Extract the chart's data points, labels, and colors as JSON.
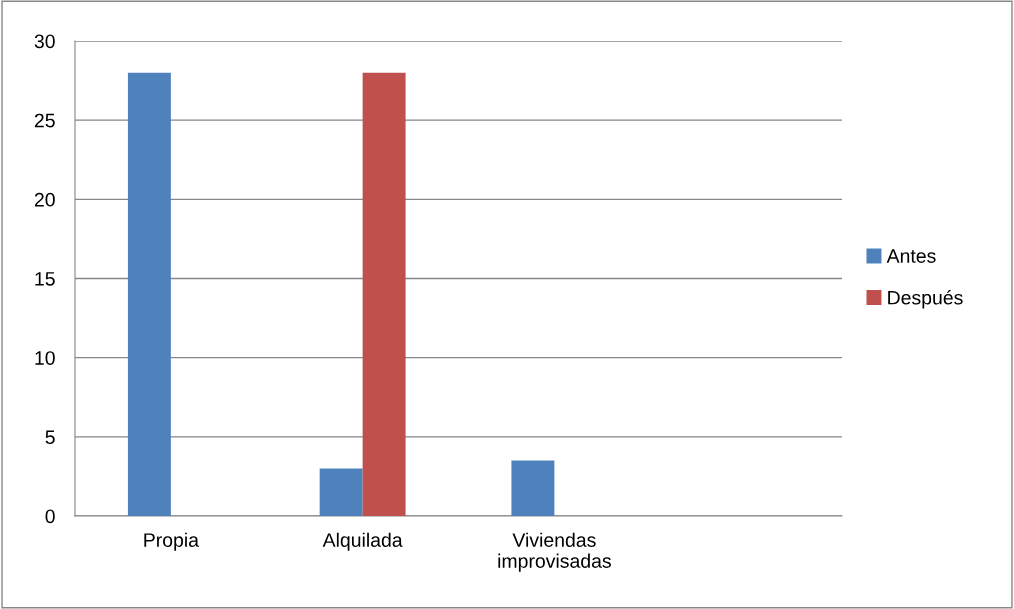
{
  "chart_data": {
    "type": "bar",
    "categories": [
      "Propia",
      "Alquilada",
      "Viviendas\nimprovisadas",
      null
    ],
    "series": [
      {
        "name": "Antes",
        "color": "#4f81bd",
        "values": [
          28,
          3,
          3.5,
          null
        ]
      },
      {
        "name": "Después",
        "color": "#c0504d",
        "values": [
          0,
          28,
          0,
          null
        ]
      }
    ],
    "ylim": [
      0,
      30
    ],
    "yticks": [
      0,
      5,
      10,
      15,
      20,
      25,
      30
    ],
    "grid": "y",
    "legend": "right"
  }
}
